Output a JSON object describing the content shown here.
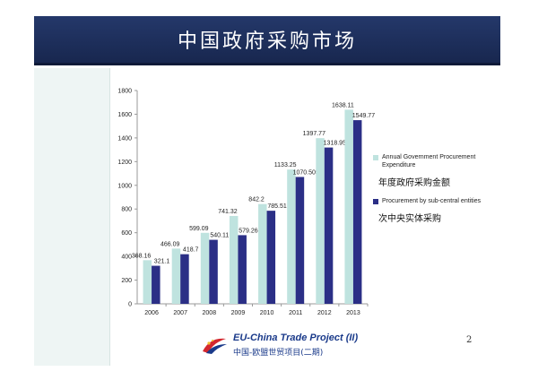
{
  "slide": {
    "title": "中国政府采购市场",
    "page_number": "2"
  },
  "legend": {
    "items": [
      {
        "label": "Annual Government Procurement Expenditure",
        "cn_label": "年度政府采购金额",
        "color": "#bfe3df"
      },
      {
        "label": "Procurement by sub-central entities",
        "cn_label": "次中央实体采购",
        "color": "#2b2f86"
      }
    ]
  },
  "logo": {
    "en": "EU-China Trade Project (II)",
    "cn": "中国-欧盟世贸项目(二期)"
  },
  "chart_data": {
    "type": "bar",
    "categories": [
      "2006",
      "2007",
      "2008",
      "2009",
      "2010",
      "2011",
      "2012",
      "2013"
    ],
    "series": [
      {
        "name": "Annual Government Procurement Expenditure",
        "values": [
          368.16,
          466.09,
          599.09,
          741.32,
          842.2,
          1133.25,
          1397.77,
          1638.11
        ],
        "labels": [
          "368.16",
          "466.09",
          "599.09",
          "741.32",
          "842.2",
          "1133.25",
          "1397.77",
          "1638.11"
        ],
        "color": "#bfe3df"
      },
      {
        "name": "Procurement by sub-central entities",
        "values": [
          321.1,
          418.7,
          540.11,
          579.26,
          785.51,
          1070.505,
          1318.95,
          1549.77
        ],
        "labels": [
          "321.1",
          "418.7",
          "540.11",
          "579.26",
          "785.51",
          "1070.505",
          "1318.95",
          "1549.77"
        ],
        "color": "#2b2f86"
      }
    ],
    "yticks": [
      "0",
      "200",
      "400",
      "600",
      "800",
      "1000",
      "1200",
      "1400",
      "1600",
      "1800"
    ],
    "ylim": [
      0,
      1800
    ],
    "grid": false,
    "legend_position": "right"
  }
}
